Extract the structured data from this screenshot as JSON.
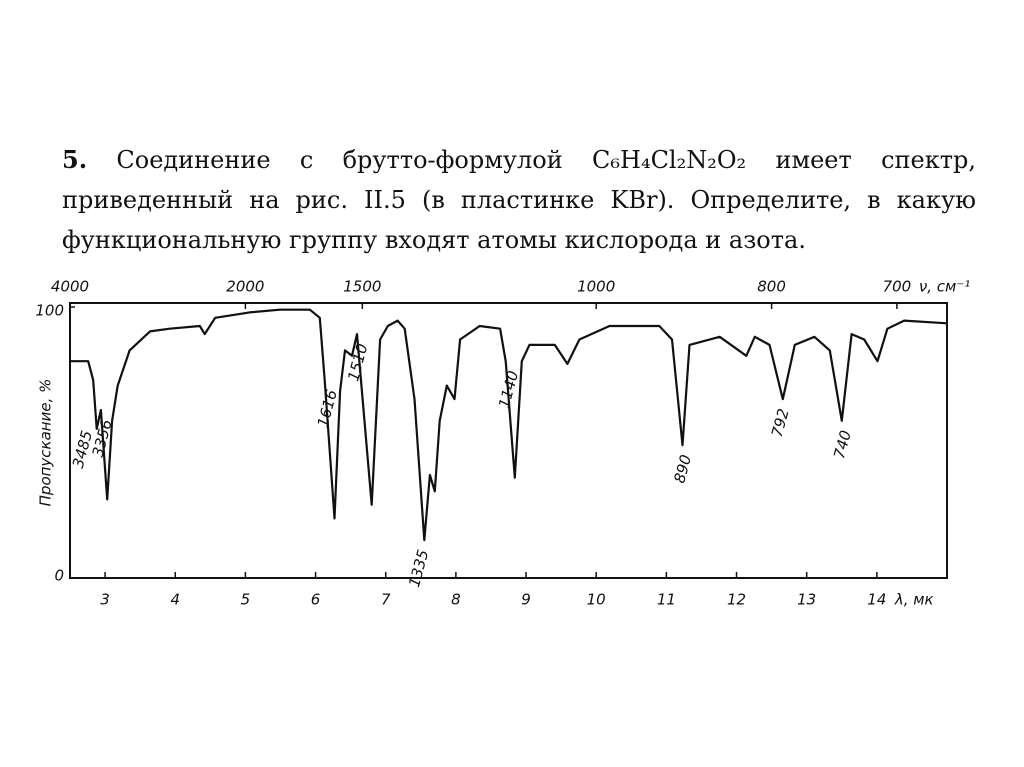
{
  "problem": {
    "number": "5.",
    "lines": [
      "Соединение с брутто-формулой C₆H₄Cl₂N₂O₂ имеет спектр,",
      "приведенный на рис. II.5 (в пластинке KBr). Определите, в какую",
      "функциональную группу входят атомы кислорода и азота."
    ]
  },
  "chart_data": {
    "type": "line",
    "ylabel": "Пропускание, %",
    "xlabel": "λ, мк",
    "x2label": "ν, см⁻¹",
    "color": "#111111",
    "xlim": [
      2.5,
      15
    ],
    "xticks": [
      3,
      4,
      5,
      6,
      7,
      8,
      9,
      10,
      11,
      12,
      13,
      14
    ],
    "x2ticks": [
      4000,
      2000,
      1500,
      1000,
      800,
      700
    ],
    "ylim": [
      0,
      100
    ],
    "yticks": [
      0,
      100
    ],
    "x": [
      2.5,
      2.76,
      2.83,
      2.88,
      2.94,
      3.03,
      3.1,
      3.18,
      3.35,
      3.64,
      3.92,
      4.35,
      4.42,
      4.57,
      5.06,
      5.49,
      5.92,
      6.06,
      6.13,
      6.27,
      6.35,
      6.42,
      6.52,
      6.59,
      6.8,
      6.92,
      7.03,
      7.17,
      7.27,
      7.41,
      7.55,
      7.63,
      7.7,
      7.77,
      7.87,
      7.98,
      8.06,
      8.34,
      8.63,
      8.71,
      8.84,
      8.94,
      9.05,
      9.41,
      9.59,
      9.76,
      10.19,
      10.9,
      11.08,
      11.23,
      11.33,
      11.76,
      12.14,
      12.26,
      12.47,
      12.66,
      12.83,
      13.11,
      13.33,
      13.5,
      13.64,
      13.82,
      14.01,
      14.15,
      14.39,
      15
    ],
    "values": [
      80,
      80,
      73,
      55,
      62,
      29,
      58,
      71,
      84,
      91,
      92,
      93,
      90,
      96,
      98,
      99,
      99,
      96,
      73,
      22,
      69,
      84,
      82,
      90,
      27,
      88,
      93,
      95,
      92,
      66,
      14,
      38,
      32,
      58,
      71,
      66,
      88,
      93,
      92,
      80,
      37,
      80,
      86,
      86,
      79,
      88,
      93,
      93,
      88,
      49,
      86,
      89,
      82,
      89,
      86,
      66,
      86,
      89,
      84,
      58,
      90,
      88,
      80,
      92,
      95,
      94
    ],
    "annotations": [
      3485,
      3356,
      1616,
      1510,
      1335,
      1140,
      890,
      792,
      740
    ]
  }
}
